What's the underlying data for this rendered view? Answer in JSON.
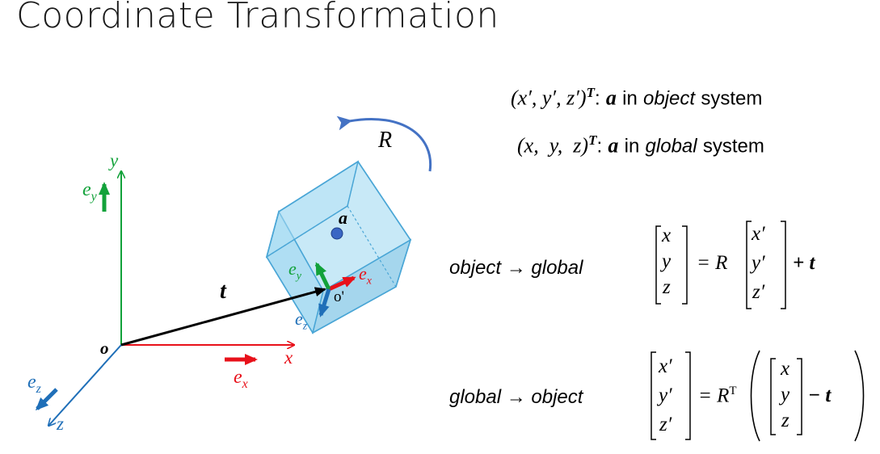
{
  "title": "Coordinate Transformation",
  "global_axes": {
    "origin_label": "o",
    "x_label": "x",
    "y_label": "y",
    "z_label": "z",
    "ex_label": "e",
    "ex_sub": "x",
    "ey_label": "e",
    "ey_sub": "y",
    "ez_label": "e",
    "ez_sub": "z"
  },
  "object": {
    "point_label": "a",
    "origin_label": "o'",
    "ex_label": "e",
    "ex_sub": "x",
    "ey_label": "e",
    "ey_sub": "y",
    "ez_label": "e",
    "ez_sub": "z",
    "rotation_label": "R",
    "translation_label": "t"
  },
  "definitions": [
    {
      "math": "(x′, y′, z′)",
      "sup": "T",
      "colon": ":",
      "bold": "a",
      "pre": "in",
      "italic": "object",
      "post": "system"
    },
    {
      "math": "(x,  y,  z)",
      "sup": "T",
      "colon": ":",
      "bold": "a",
      "pre": "in",
      "italic": "global",
      "post": "system"
    }
  ],
  "equations": [
    {
      "from": "object",
      "arrow": "→",
      "to": "global",
      "lhs": [
        "x",
        "y",
        "z"
      ],
      "mid": "= R",
      "rhs": [
        "x′",
        "y′",
        "z′"
      ],
      "tail": "+ t"
    },
    {
      "from": "global",
      "arrow": "→",
      "to": "object",
      "lhs": [
        "x′",
        "y′",
        "z′"
      ],
      "mid": "= R",
      "sup": "T",
      "rhs": [
        "x",
        "y",
        "z"
      ],
      "tail": "− t"
    }
  ],
  "colors": {
    "x_axis": "#e8111a",
    "y_axis": "#12a23a",
    "z_axis": "#1f6fb8",
    "cube_fill": "#9ad7f1",
    "cube_edge": "#4aa6d6",
    "rotation_arrow": "#4472c4",
    "point": "#3a66c4"
  }
}
